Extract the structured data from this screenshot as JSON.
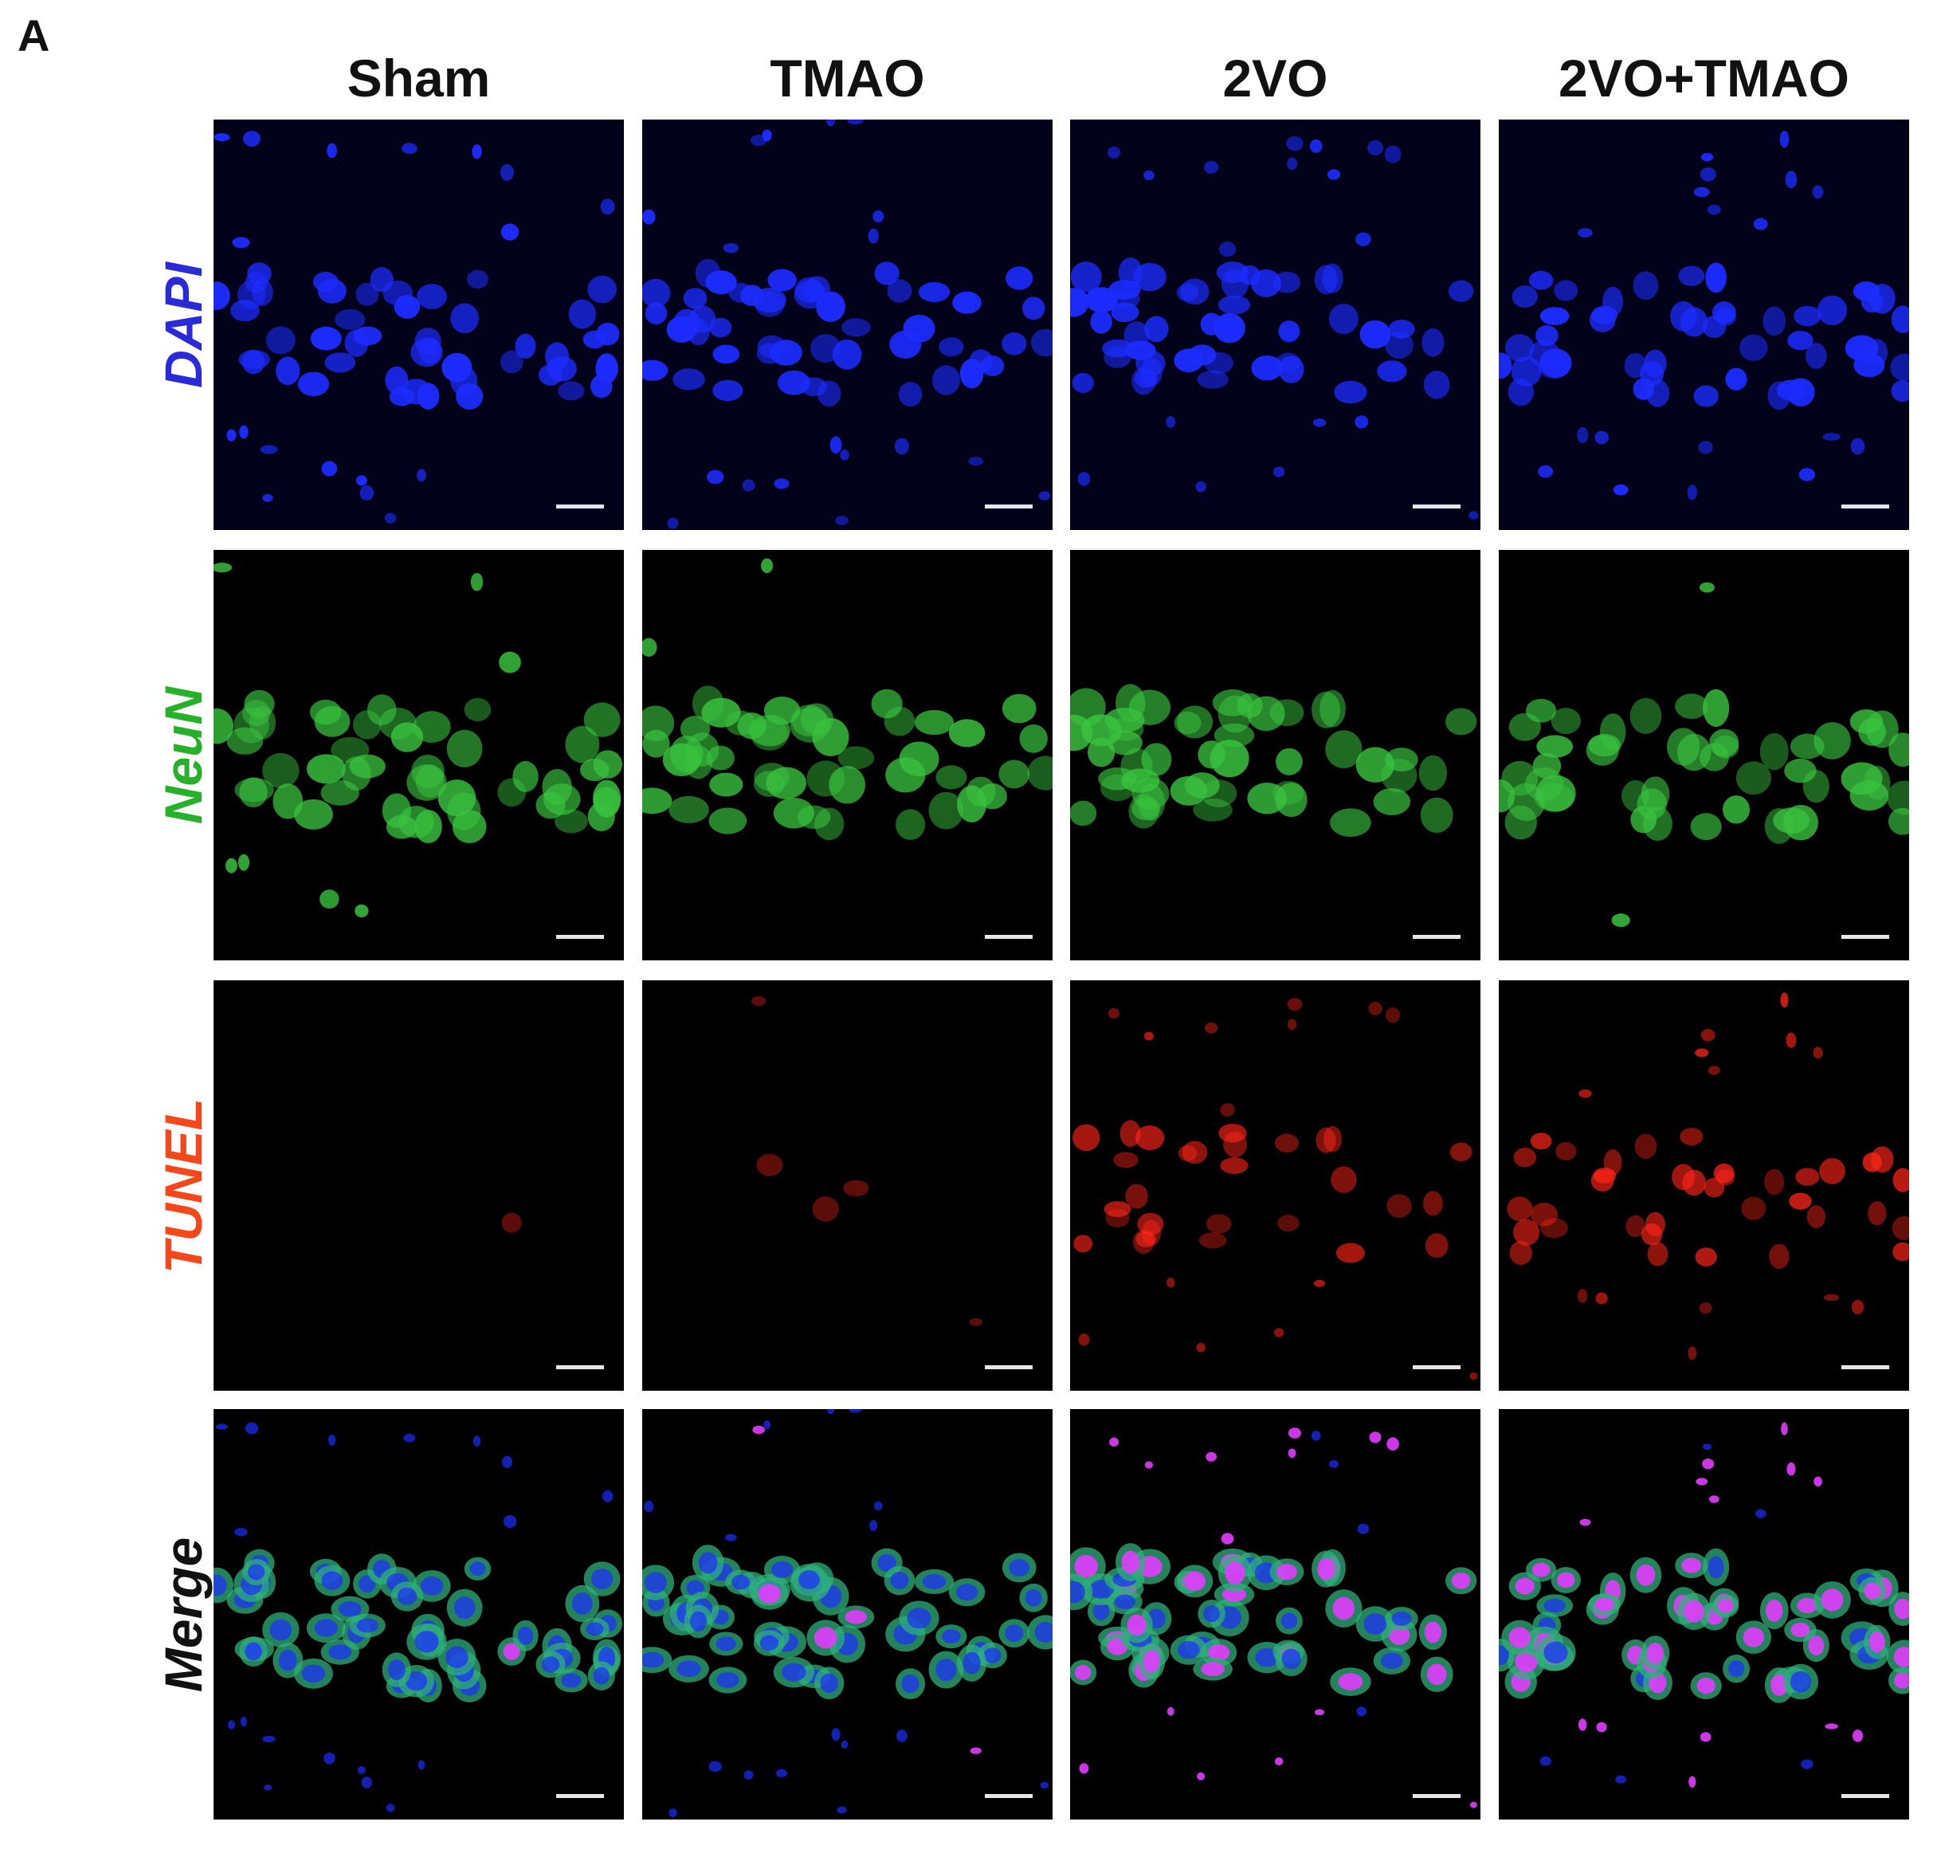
{
  "figure": {
    "panel_letter": "A",
    "columns": [
      "Sham",
      "TMAO",
      "2VO",
      "2VO+TMAO"
    ],
    "rows": [
      {
        "label": "DAPI",
        "color": "#2a2ad8"
      },
      {
        "label": "NeuN",
        "color": "#27b12a"
      },
      {
        "label": "TUNEL",
        "color": "#f4471c"
      },
      {
        "label": "Merge",
        "color": "#111111"
      }
    ],
    "channel_colors": {
      "dapi": "#1c2cff",
      "neun": "#39c23e",
      "tunel": "#ff2418",
      "merge_overlap": "#e23cff"
    },
    "scale_bar_color": "#e6e6e6",
    "tunel_positive_density": [
      0.02,
      0.03,
      0.55,
      0.7
    ]
  }
}
